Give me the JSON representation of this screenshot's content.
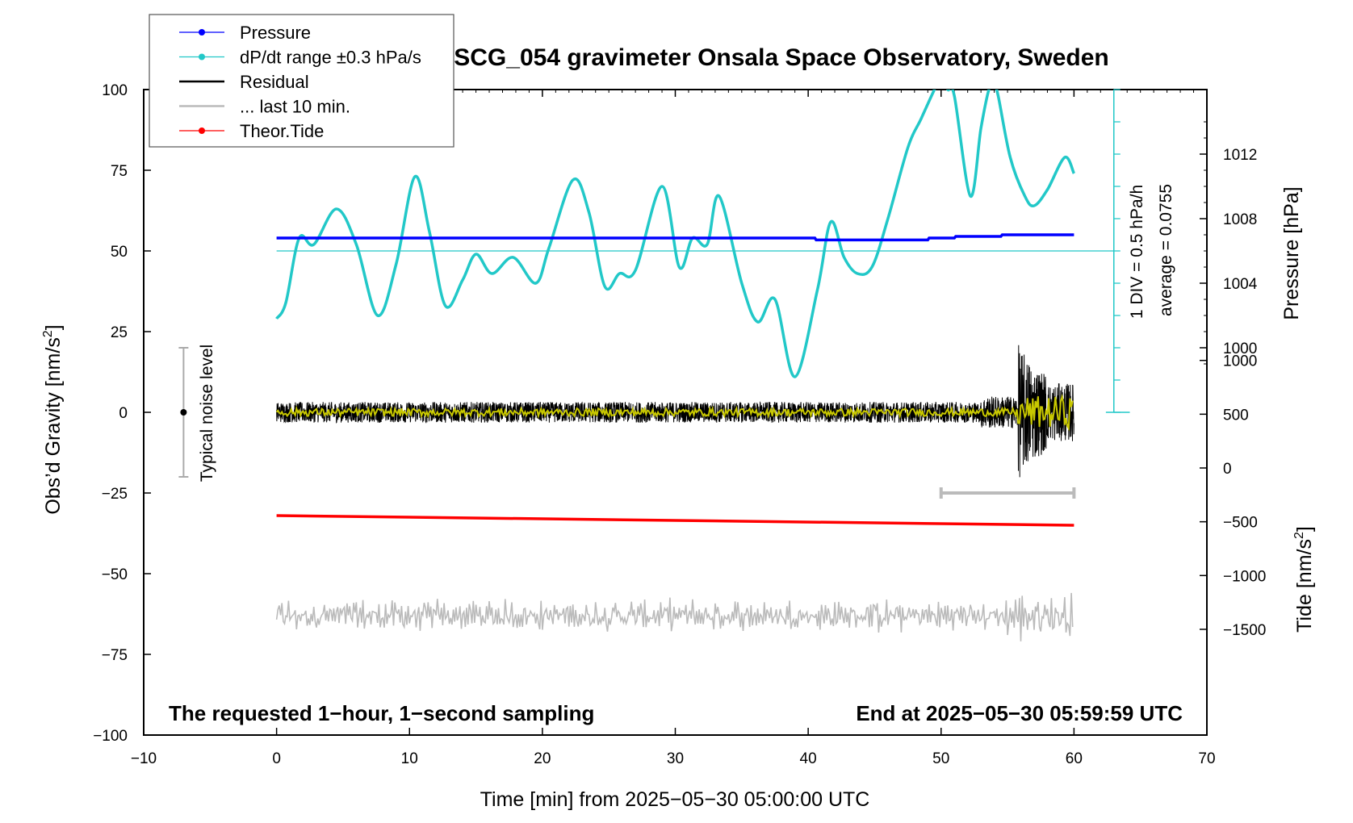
{
  "chart_data": {
    "type": "line",
    "title": "SCG_054 gravimeter Onsala Space Observatory, Sweden",
    "xlabel": "Time [min] from 2025−05−30 05:00:00 UTC",
    "ylabel_left": "Obs’d Gravity [nm/s",
    "ylabel_left_sup": "2",
    "ylabel_left_close": "]",
    "ylabel_pressure": "Pressure [hPa]",
    "ylabel_tide": "Tide [nm/s",
    "ylabel_tide_sup": "2",
    "ylabel_tide_close": "]",
    "xlim": [
      -10,
      70
    ],
    "ylim": [
      -100,
      100
    ],
    "x_ticks": [
      -10,
      0,
      10,
      20,
      30,
      40,
      50,
      60,
      70
    ],
    "x_tick_labels": [
      "−10",
      "0",
      "10",
      "20",
      "30",
      "40",
      "50",
      "60",
      "70"
    ],
    "y_ticks": [
      100,
      75,
      50,
      25,
      0,
      -25,
      -50,
      -75,
      -100
    ],
    "y_tick_labels": [
      "100",
      "75",
      "50",
      "25",
      "0",
      "−25",
      "−50",
      "−75",
      "−100"
    ],
    "pressure_ticks": [
      1012,
      1008,
      1004,
      1000
    ],
    "pressure_tick_labels": [
      "1012",
      "1008",
      "1004",
      "1000"
    ],
    "tide_ticks": [
      1000,
      500,
      0,
      -500,
      -1000,
      -1500
    ],
    "tide_tick_labels": [
      "1000",
      "500",
      "0",
      "−500",
      "−1000",
      "−1500"
    ],
    "legend": [
      {
        "label": "Pressure",
        "color": "#0000ff",
        "marker": true
      },
      {
        "label": "dP/dt range ±0.3 hPa/s",
        "color": "#22c8c8",
        "marker": true
      },
      {
        "label": "Residual",
        "color": "#000000",
        "marker": false
      },
      {
        "label": "... last 10 min.",
        "color": "#bbbbbb",
        "marker": false
      },
      {
        "label": "Theor.Tide",
        "color": "#ff0000",
        "marker": true
      }
    ],
    "legend_position": "top-left",
    "annotations": {
      "bottom_left": "The requested 1−hour, 1−second sampling",
      "bottom_right": "End at 2025−05−30 05:59:59 UTC",
      "noise": "Typical noise level",
      "div": "1 DIV = 0.5 hPa/h",
      "average": "average = 0.0755"
    },
    "noise_bar": {
      "x": -7,
      "center": 0,
      "half_range": 20
    },
    "last10_bar": {
      "x_start": 50,
      "x_end": 60,
      "y": -25
    },
    "series": [
      {
        "name": "Pressure",
        "color": "#0000ff",
        "x": [
          0,
          40.5,
          40.6,
          49,
          49.1,
          51,
          51.1,
          54.5,
          54.6,
          60
        ],
        "values": [
          54,
          54,
          53.4,
          53.4,
          54,
          54,
          54.5,
          54.5,
          55,
          55
        ]
      },
      {
        "name": "dP/dt",
        "color": "#22c8c8",
        "x": [
          0,
          0.7,
          1.7,
          2.8,
          4.5,
          6,
          7.6,
          9,
          10.4,
          11.5,
          12.7,
          14,
          15,
          16.2,
          17.8,
          19.5,
          20.5,
          22.3,
          23.5,
          24.7,
          25.8,
          27,
          29,
          30.3,
          31.3,
          32.4,
          33.3,
          35,
          36.2,
          37.5,
          39,
          40.7,
          41.7,
          42.7,
          43.7,
          44.8,
          46,
          47.5,
          48.5,
          49.5,
          50,
          50.5,
          51,
          52.2,
          53,
          53.6,
          54,
          54.3,
          55.2,
          56.3,
          57,
          58,
          59.3,
          60
        ],
        "values": [
          29,
          34,
          54,
          52,
          63,
          52,
          30,
          46,
          73,
          56,
          33,
          41,
          49,
          43,
          48,
          40,
          51,
          72,
          62,
          39,
          43,
          44,
          70,
          45,
          54,
          52,
          67,
          40,
          28,
          35,
          11,
          38,
          59,
          48,
          43,
          45,
          60,
          82,
          91,
          100,
          104,
          100,
          98,
          67,
          88,
          100,
          101,
          98,
          79,
          67,
          64,
          69,
          79,
          74
        ]
      },
      {
        "name": "Residual",
        "color": "#000000",
        "x_range": [
          0,
          60
        ],
        "baseline": 0
      },
      {
        "name": "Smoothed residual",
        "color": "#c8c800",
        "x_range": [
          0,
          60
        ],
        "baseline": 0
      },
      {
        "name": "... last 10 min.",
        "color": "#bbbbbb",
        "x_range": [
          0,
          60
        ],
        "baseline": -63
      },
      {
        "name": "Theor.Tide",
        "color": "#ff0000",
        "x": [
          0,
          60
        ],
        "values": [
          -32,
          -35
        ]
      }
    ],
    "reference_line": {
      "name": "dP/dt average line",
      "value": 50,
      "x_range": [
        0,
        63
      ]
    }
  }
}
